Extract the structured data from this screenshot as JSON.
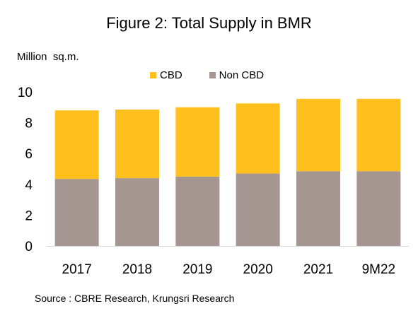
{
  "title": "Figure 2: Total Supply in BMR",
  "source": "Source : CBRE Research, Krungsri Research",
  "colors": {
    "cbd": "#FFC01E",
    "non_cbd": "#A59692",
    "axis": "#D9D9D9",
    "text": "#000000"
  },
  "chart_data": {
    "type": "bar",
    "stacked": true,
    "title": "Figure 2: Total Supply in BMR",
    "ylabel": "Million  sq.m.",
    "xlabel": "",
    "categories": [
      "2017",
      "2018",
      "2019",
      "2020",
      "2021",
      "9M22"
    ],
    "ylim": [
      0,
      10
    ],
    "yticks": [
      0,
      2,
      4,
      6,
      8,
      10
    ],
    "grid": false,
    "legend_position": "top",
    "series": [
      {
        "name": "Non CBD",
        "color": "#A59692",
        "values": [
          4.35,
          4.4,
          4.5,
          4.7,
          4.85,
          4.85
        ]
      },
      {
        "name": "CBD",
        "color": "#FFC01E",
        "values": [
          4.45,
          4.45,
          4.5,
          4.55,
          4.7,
          4.7
        ]
      }
    ],
    "legend_order": [
      "CBD",
      "Non CBD"
    ]
  }
}
